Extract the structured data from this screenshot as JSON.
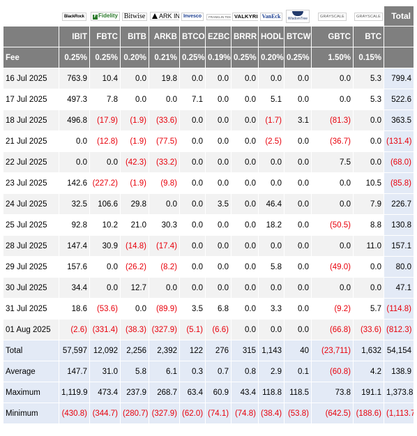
{
  "header": {
    "issuers": [
      {
        "icon": "blackrock-logo",
        "text": "BlackRock"
      },
      {
        "icon": "fidelity-logo",
        "text": "Fidelity"
      },
      {
        "icon": "bitwise-logo",
        "text": "Bitwise"
      },
      {
        "icon": "ark-invest-logo",
        "text": "ARK INVEST"
      },
      {
        "icon": "invesco-logo",
        "text": "Invesco"
      },
      {
        "icon": "franklin-templeton-logo",
        "text": "FRANKLIN TEMPLETON"
      },
      {
        "icon": "valkyrie-logo",
        "text": "VALKYRIE"
      },
      {
        "icon": "vaneck-logo",
        "text": "VanEck"
      },
      {
        "icon": "wisdomtree-logo",
        "text": "WisdomTree"
      },
      {
        "icon": "grayscale-logo",
        "text": "GRAYSCALE"
      },
      {
        "icon": "grayscale-logo",
        "text": "GRAYSCALE"
      }
    ],
    "total_label": "Total",
    "tickers": [
      "IBIT",
      "FBTC",
      "BITB",
      "ARKB",
      "BTCO",
      "EZBC",
      "BRRR",
      "HODL",
      "BTCW",
      "GBTC",
      "BTC"
    ],
    "fee_label": "Fee",
    "fees": [
      "0.25%",
      "0.25%",
      "0.20%",
      "0.21%",
      "0.25%",
      "0.19%",
      "0.25%",
      "0.20%",
      "0.25%",
      "1.50%",
      "0.15%"
    ]
  },
  "rows": [
    {
      "date": "16 Jul 2025",
      "values": [
        "763.9",
        "10.4",
        "0.0",
        "19.8",
        "0.0",
        "0.0",
        "0.0",
        "0.0",
        "0.0",
        "0.0",
        "5.3"
      ],
      "total": "799.4"
    },
    {
      "date": "17 Jul 2025",
      "values": [
        "497.3",
        "7.8",
        "0.0",
        "0.0",
        "7.1",
        "0.0",
        "0.0",
        "5.1",
        "0.0",
        "0.0",
        "5.3"
      ],
      "total": "522.6"
    },
    {
      "date": "18 Jul 2025",
      "values": [
        "496.8",
        "(17.9)",
        "(1.9)",
        "(33.6)",
        "0.0",
        "0.0",
        "0.0",
        "(1.7)",
        "3.1",
        "(81.3)",
        "0.0"
      ],
      "total": "363.5"
    },
    {
      "date": "21 Jul 2025",
      "values": [
        "0.0",
        "(12.8)",
        "(1.9)",
        "(77.5)",
        "0.0",
        "0.0",
        "0.0",
        "(2.5)",
        "0.0",
        "(36.7)",
        "0.0"
      ],
      "total": "(131.4)"
    },
    {
      "date": "22 Jul 2025",
      "values": [
        "0.0",
        "0.0",
        "(42.3)",
        "(33.2)",
        "0.0",
        "0.0",
        "0.0",
        "0.0",
        "0.0",
        "7.5",
        "0.0"
      ],
      "total": "(68.0)"
    },
    {
      "date": "23 Jul 2025",
      "values": [
        "142.6",
        "(227.2)",
        "(1.9)",
        "(9.8)",
        "0.0",
        "0.0",
        "0.0",
        "0.0",
        "0.0",
        "0.0",
        "10.5"
      ],
      "total": "(85.8)"
    },
    {
      "date": "24 Jul 2025",
      "values": [
        "32.5",
        "106.6",
        "29.8",
        "0.0",
        "0.0",
        "3.5",
        "0.0",
        "46.4",
        "0.0",
        "0.0",
        "7.9"
      ],
      "total": "226.7"
    },
    {
      "date": "25 Jul 2025",
      "values": [
        "92.8",
        "10.2",
        "21.0",
        "30.3",
        "0.0",
        "0.0",
        "0.0",
        "18.2",
        "0.0",
        "(50.5)",
        "8.8"
      ],
      "total": "130.8"
    },
    {
      "date": "28 Jul 2025",
      "values": [
        "147.4",
        "30.9",
        "(14.8)",
        "(17.4)",
        "0.0",
        "0.0",
        "0.0",
        "0.0",
        "0.0",
        "0.0",
        "11.0"
      ],
      "total": "157.1"
    },
    {
      "date": "29 Jul 2025",
      "values": [
        "157.6",
        "0.0",
        "(26.2)",
        "(8.2)",
        "0.0",
        "0.0",
        "0.0",
        "5.8",
        "0.0",
        "(49.0)",
        "0.0"
      ],
      "total": "80.0"
    },
    {
      "date": "30 Jul 2025",
      "values": [
        "34.4",
        "0.0",
        "12.7",
        "0.0",
        "0.0",
        "0.0",
        "0.0",
        "0.0",
        "0.0",
        "0.0",
        "0.0"
      ],
      "total": "47.1"
    },
    {
      "date": "31 Jul 2025",
      "values": [
        "18.6",
        "(53.6)",
        "0.0",
        "(89.9)",
        "3.5",
        "6.8",
        "0.0",
        "3.3",
        "0.0",
        "(9.2)",
        "5.7"
      ],
      "total": "(114.8)"
    },
    {
      "date": "01 Aug 2025",
      "values": [
        "(2.6)",
        "(331.4)",
        "(38.3)",
        "(327.9)",
        "(5.1)",
        "(6.6)",
        "0.0",
        "0.0",
        "0.0",
        "(66.8)",
        "(33.6)"
      ],
      "total": "(812.3)"
    }
  ],
  "summary": [
    {
      "label": "Total",
      "values": [
        "57,597",
        "12,092",
        "2,256",
        "2,392",
        "122",
        "276",
        "315",
        "1,143",
        "40",
        "(23,711)",
        "1,632"
      ],
      "total": "54,154"
    },
    {
      "label": "Average",
      "values": [
        "147.7",
        "31.0",
        "5.8",
        "6.1",
        "0.3",
        "0.7",
        "0.8",
        "2.9",
        "0.1",
        "(60.8)",
        "4.2"
      ],
      "total": "138.9"
    },
    {
      "label": "Maximum",
      "values": [
        "1,119.9",
        "473.4",
        "237.9",
        "268.7",
        "63.4",
        "60.9",
        "43.4",
        "118.8",
        "118.5",
        "73.8",
        "191.1"
      ],
      "total": "1,373.8"
    },
    {
      "label": "Minimum",
      "values": [
        "(430.8)",
        "(344.7)",
        "(280.7)",
        "(327.9)",
        "(62.0)",
        "(74.1)",
        "(74.8)",
        "(38.4)",
        "(53.8)",
        "(642.5)",
        "(188.6)"
      ],
      "total": "(1,113.7)"
    }
  ],
  "colors": {
    "header_gray": "#7f7f7f",
    "negative": "#e8000b",
    "summary_bg": "#e3eaf6",
    "stripe": "#f2f2f2"
  }
}
